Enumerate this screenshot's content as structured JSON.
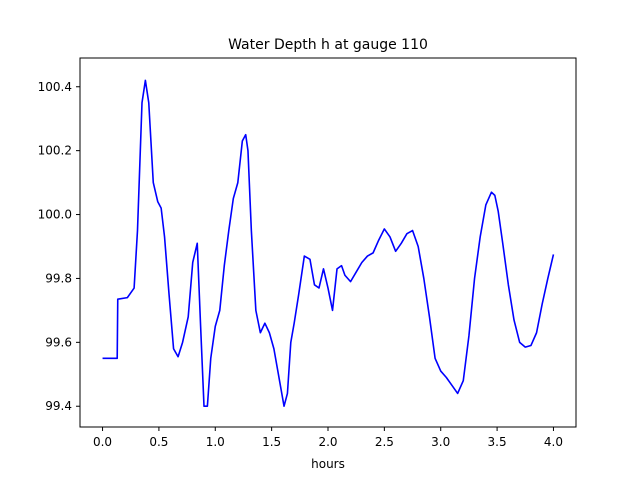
{
  "chart_data": {
    "type": "line",
    "title": "Water Depth h at gauge 110",
    "xlabel": "hours",
    "ylabel": "",
    "xlim": [
      -0.2,
      4.2
    ],
    "ylim": [
      99.335,
      100.49
    ],
    "xticks": [
      0.0,
      0.5,
      1.0,
      1.5,
      2.0,
      2.5,
      3.0,
      3.5,
      4.0
    ],
    "xtick_labels": [
      "0.0",
      "0.5",
      "1.0",
      "1.5",
      "2.0",
      "2.5",
      "3.0",
      "3.5",
      "4.0"
    ],
    "yticks": [
      99.4,
      99.6,
      99.8,
      100.0,
      100.2,
      100.4
    ],
    "ytick_labels": [
      "99.4",
      "99.6",
      "99.8",
      "100.0",
      "100.2",
      "100.4"
    ],
    "grid": false,
    "series": [
      {
        "color": "#0000ff",
        "x": [
          0.0,
          0.13,
          0.135,
          0.22,
          0.28,
          0.31,
          0.35,
          0.38,
          0.41,
          0.45,
          0.49,
          0.52,
          0.55,
          0.59,
          0.63,
          0.67,
          0.71,
          0.76,
          0.8,
          0.84,
          0.87,
          0.9,
          0.93,
          0.96,
          1.0,
          1.04,
          1.08,
          1.12,
          1.16,
          1.2,
          1.24,
          1.27,
          1.29,
          1.32,
          1.36,
          1.4,
          1.44,
          1.48,
          1.52,
          1.56,
          1.61,
          1.64,
          1.67,
          1.7,
          1.74,
          1.79,
          1.84,
          1.88,
          1.92,
          1.96,
          2.0,
          2.04,
          2.08,
          2.12,
          2.15,
          2.2,
          2.25,
          2.3,
          2.35,
          2.4,
          2.45,
          2.5,
          2.55,
          2.6,
          2.65,
          2.7,
          2.75,
          2.8,
          2.85,
          2.9,
          2.95,
          3.0,
          3.05,
          3.1,
          3.15,
          3.2,
          3.25,
          3.3,
          3.35,
          3.4,
          3.45,
          3.48,
          3.51,
          3.55,
          3.6,
          3.65,
          3.7,
          3.75,
          3.8,
          3.85,
          3.9,
          3.95,
          4.0
        ],
        "y": [
          99.55,
          99.55,
          99.735,
          99.74,
          99.77,
          99.95,
          100.35,
          100.42,
          100.35,
          100.1,
          100.04,
          100.02,
          99.93,
          99.75,
          99.58,
          99.555,
          99.6,
          99.68,
          99.85,
          99.91,
          99.65,
          99.4,
          99.4,
          99.55,
          99.65,
          99.7,
          99.84,
          99.95,
          100.05,
          100.1,
          100.23,
          100.25,
          100.2,
          99.95,
          99.7,
          99.63,
          99.66,
          99.63,
          99.58,
          99.5,
          99.4,
          99.44,
          99.6,
          99.66,
          99.75,
          99.87,
          99.86,
          99.78,
          99.77,
          99.83,
          99.77,
          99.7,
          99.83,
          99.84,
          99.81,
          99.79,
          99.82,
          99.85,
          99.87,
          99.88,
          99.92,
          99.955,
          99.93,
          99.885,
          99.91,
          99.94,
          99.95,
          99.9,
          99.8,
          99.68,
          99.55,
          99.51,
          99.49,
          99.465,
          99.44,
          99.48,
          99.62,
          99.8,
          99.93,
          100.03,
          100.07,
          100.06,
          100.01,
          99.91,
          99.78,
          99.67,
          99.6,
          99.585,
          99.59,
          99.63,
          99.72,
          99.8,
          99.875
        ]
      }
    ]
  }
}
